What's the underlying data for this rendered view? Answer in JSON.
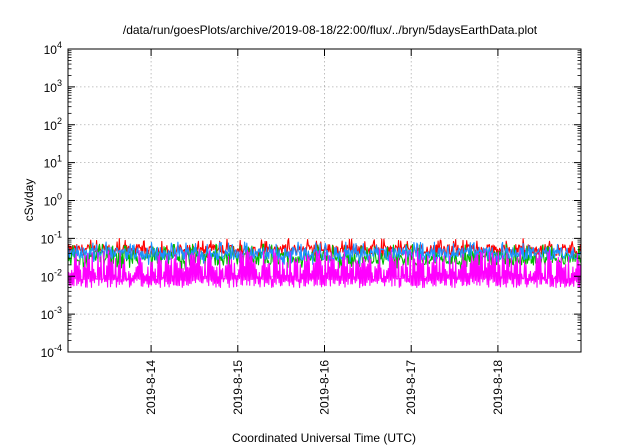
{
  "chart_data": {
    "type": "line",
    "title": "/data/run/goesPlots/archive/2019-08-18/22:00/flux/../bryn/5daysEarthData.plot",
    "xlabel": "Coordinated Universal Time (UTC)",
    "ylabel": "cSv/day",
    "y_scale": "log",
    "ylim": [
      0.0001,
      10000
    ],
    "x_range": [
      "2019-08-13 01:00",
      "2019-08-18 23:00"
    ],
    "y_ticks": [
      {
        "base": "10",
        "exp": "-4",
        "value": 0.0001
      },
      {
        "base": "10",
        "exp": "-3",
        "value": 0.001
      },
      {
        "base": "10",
        "exp": "-2",
        "value": 0.01
      },
      {
        "base": "10",
        "exp": "-1",
        "value": 0.1
      },
      {
        "base": "10",
        "exp": "0",
        "value": 1
      },
      {
        "base": "10",
        "exp": "1",
        "value": 10
      },
      {
        "base": "10",
        "exp": "2",
        "value": 100
      },
      {
        "base": "10",
        "exp": "3",
        "value": 1000
      },
      {
        "base": "10",
        "exp": "4",
        "value": 10000
      }
    ],
    "x_ticks": [
      {
        "label": "2019-8-14",
        "date": "2019-08-14"
      },
      {
        "label": "2019-8-15",
        "date": "2019-08-15"
      },
      {
        "label": "2019-8-16",
        "date": "2019-08-16"
      },
      {
        "label": "2019-8-17",
        "date": "2019-08-17"
      },
      {
        "label": "2019-8-18",
        "date": "2019-08-18"
      }
    ],
    "grid": true,
    "series": [
      {
        "color": "#ff0000",
        "approx_baseline": 0.05,
        "approx_range": [
          0.03,
          0.1
        ]
      },
      {
        "color": "#00bb00",
        "approx_baseline": 0.03,
        "approx_range": [
          0.015,
          0.07
        ]
      },
      {
        "color": "#1e90ff",
        "approx_baseline": 0.04,
        "approx_range": [
          0.02,
          0.08
        ]
      },
      {
        "color": "#ff00ff",
        "approx_baseline": 0.008,
        "approx_range": [
          0.005,
          0.05
        ]
      }
    ]
  }
}
